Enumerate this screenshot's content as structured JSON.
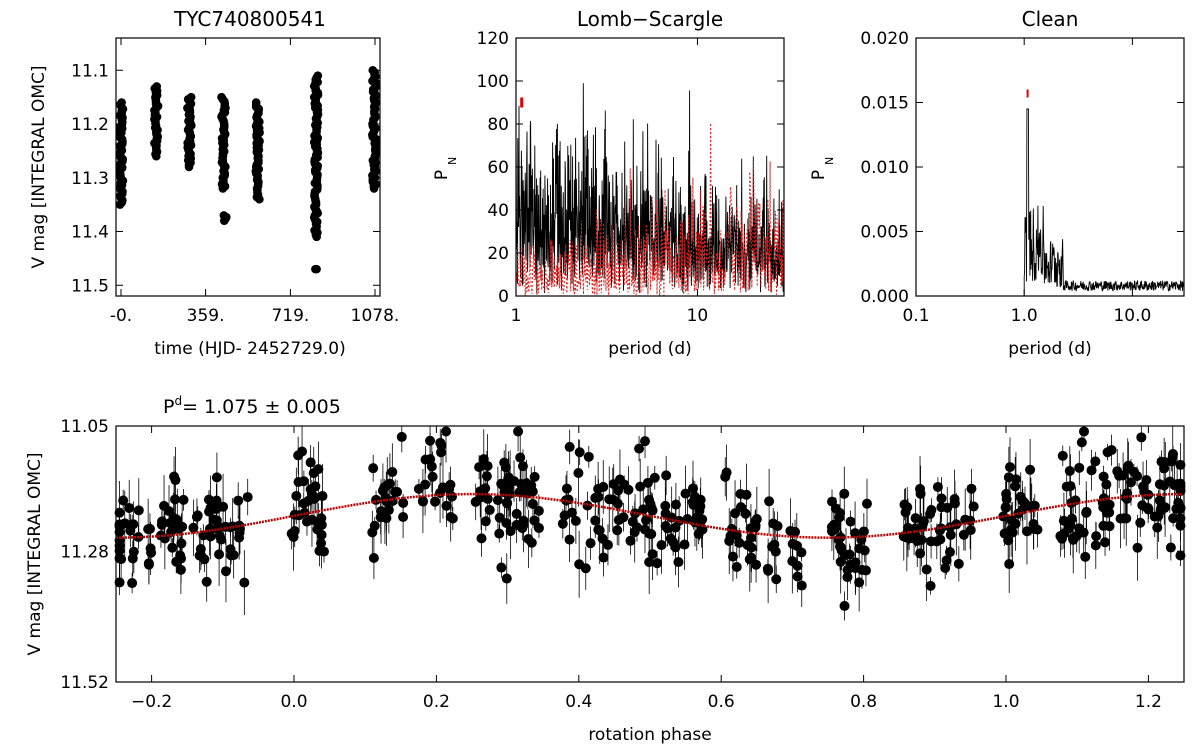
{
  "figure": {
    "period_label_sup": "d",
    "period_label_value": "=   1.075  ±   0.005"
  },
  "chart_data": [
    {
      "id": "lightcurve",
      "type": "scatter",
      "title": "TYC740800541",
      "xlabel": "time (HJD- 2452729.0)",
      "ylabel": "V mag [INTEGRAL OMC]",
      "xlim": [
        0,
        1078
      ],
      "ylim": [
        11.52,
        11.04
      ],
      "y_inverted": true,
      "xticks": [
        0,
        359,
        719,
        1078
      ],
      "xtick_labels": [
        "-0.",
        "359.",
        "719.",
        "1078."
      ],
      "yticks": [
        11.1,
        11.2,
        11.3,
        11.4,
        11.5
      ],
      "ytick_labels": [
        "11.1",
        "11.2",
        "11.3",
        "11.4",
        "11.5"
      ],
      "groups": [
        {
          "x": 0,
          "ymin": 11.16,
          "ymax": 11.35
        },
        {
          "x": 150,
          "ymin": 11.13,
          "ymax": 11.26
        },
        {
          "x": 290,
          "ymin": 11.15,
          "ymax": 11.28
        },
        {
          "x": 435,
          "ymin": 11.15,
          "ymax": 11.32
        },
        {
          "x": 445,
          "ymin": 11.37,
          "ymax": 11.38
        },
        {
          "x": 580,
          "ymin": 11.16,
          "ymax": 11.34
        },
        {
          "x": 828,
          "ymin": 11.11,
          "ymax": 11.41
        },
        {
          "x": 828,
          "ymin": 11.47,
          "ymax": 11.47
        },
        {
          "x": 1075,
          "ymin": 11.1,
          "ymax": 11.32
        }
      ],
      "grid": false
    },
    {
      "id": "lomb_scargle",
      "type": "line",
      "title": "Lomb−Scargle",
      "xlabel": "period (d)",
      "ylabel": "P",
      "ylabel_sub": "N",
      "xscale": "log",
      "xlim": [
        1,
        30
      ],
      "ylim": [
        0,
        120
      ],
      "xticks": [
        1,
        10
      ],
      "xtick_labels": [
        "1",
        "10"
      ],
      "yticks": [
        0,
        20,
        40,
        60,
        80,
        100,
        120
      ],
      "ytick_labels": [
        "0",
        "20",
        "40",
        "60",
        "80",
        "100",
        "120"
      ],
      "series": [
        {
          "style": "solid",
          "color": "#000000"
        },
        {
          "style": "dotted",
          "color": "#e02020"
        }
      ],
      "peak_marker": {
        "x": 1.075,
        "y": 90,
        "color": "#e00000"
      },
      "grid": false
    },
    {
      "id": "clean",
      "type": "line",
      "title": "Clean",
      "xlabel": "period (d)",
      "ylabel": "P",
      "ylabel_sub": "N",
      "xscale": "log",
      "xlim": [
        0.1,
        30
      ],
      "ylim": [
        0,
        0.02
      ],
      "xticks": [
        0.1,
        1,
        10
      ],
      "xtick_labels": [
        "0.1",
        "1.0",
        "10.0"
      ],
      "yticks": [
        0,
        0.005,
        0.01,
        0.015,
        0.02
      ],
      "ytick_labels": [
        "0.000",
        "0.005",
        "0.010",
        "0.015",
        "0.020"
      ],
      "series": [
        {
          "style": "solid",
          "color": "#000000",
          "x": [
            1.0,
            1.0,
            1.075,
            1.1,
            1.2,
            1.3,
            1.5,
            1.8,
            2.0,
            2.2,
            3.0,
            4.0,
            5.5,
            6.0,
            8.0,
            10.0,
            20.0,
            30.0
          ],
          "y": [
            0,
            0.006,
            0.0145,
            0.008,
            0.005,
            0.003,
            0.005,
            0.004,
            0.005,
            0.002,
            0.001,
            0.0015,
            0.002,
            0.0015,
            0.0012,
            0.001,
            0.0012,
            0.001
          ]
        }
      ],
      "peak_marker": {
        "x": 1.075,
        "y": 0.0157,
        "color": "#e00000"
      },
      "grid": false
    },
    {
      "id": "phase",
      "type": "scatter",
      "title": "",
      "xlabel": "rotation phase",
      "ylabel": "V mag [INTEGRAL OMC]",
      "xlim": [
        -0.25,
        1.25
      ],
      "ylim": [
        11.52,
        11.05
      ],
      "y_inverted": true,
      "xticks": [
        -0.2,
        0.0,
        0.2,
        0.4,
        0.6,
        0.8,
        1.0,
        1.2
      ],
      "xtick_labels": [
        "−0.2",
        "0.0",
        "0.2",
        "0.4",
        "0.6",
        "0.8",
        "1.0",
        "1.2"
      ],
      "yticks": [
        11.05,
        11.28,
        11.52
      ],
      "ytick_labels": [
        "11.05",
        "11.28",
        "11.52"
      ],
      "fit": {
        "type": "sinusoid",
        "mean": 11.215,
        "amplitude": 0.04,
        "phase_of_min_mag": 0.25,
        "color": "#c00000"
      },
      "grid": false
    }
  ]
}
